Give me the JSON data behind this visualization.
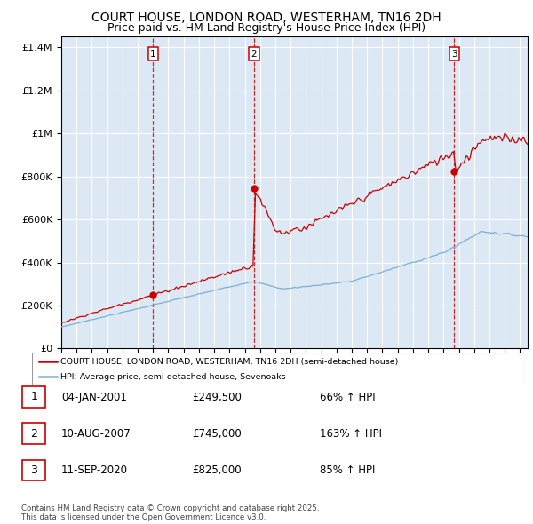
{
  "title": "COURT HOUSE, LONDON ROAD, WESTERHAM, TN16 2DH",
  "subtitle": "Price paid vs. HM Land Registry's House Price Index (HPI)",
  "legend_red": "COURT HOUSE, LONDON ROAD, WESTERHAM, TN16 2DH (semi-detached house)",
  "legend_blue": "HPI: Average price, semi-detached house, Sevenoaks",
  "footnote": "Contains HM Land Registry data © Crown copyright and database right 2025.\nThis data is licensed under the Open Government Licence v3.0.",
  "transactions": [
    {
      "num": 1,
      "date": "04-JAN-2001",
      "price": 249500,
      "pct": "66%",
      "dir": "↑",
      "ref": "HPI"
    },
    {
      "num": 2,
      "date": "10-AUG-2007",
      "price": 745000,
      "pct": "163%",
      "dir": "↑",
      "ref": "HPI"
    },
    {
      "num": 3,
      "date": "11-SEP-2020",
      "price": 825000,
      "pct": "85%",
      "dir": "↑",
      "ref": "HPI"
    }
  ],
  "sale_years": [
    2001.01,
    2007.61,
    2020.7
  ],
  "sale_prices": [
    249500,
    745000,
    825000
  ],
  "ylim": [
    0,
    1450000
  ],
  "xlim_start": 1995.0,
  "xlim_end": 2025.5,
  "bg_color": "#dce9f5",
  "red_color": "#cc0000",
  "blue_color": "#7ab0d4",
  "grid_color": "#ffffff",
  "title_fontsize": 10,
  "subtitle_fontsize": 9,
  "tick_fontsize": 7.5,
  "ytick_fontsize": 8
}
